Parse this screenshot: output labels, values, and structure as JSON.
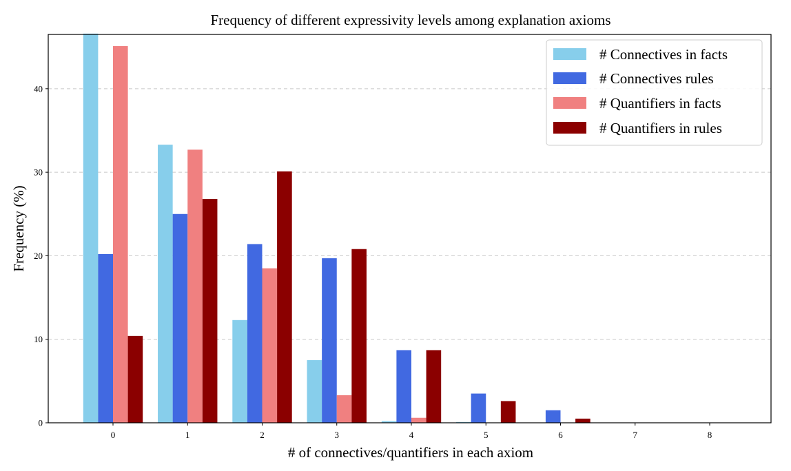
{
  "chart_data": {
    "type": "bar",
    "title": "Frequency of different expressivity levels among explanation axioms",
    "xlabel": "# of connectives/quantifiers in each axiom",
    "ylabel": "Frequency (%)",
    "categories": [
      "0",
      "1",
      "2",
      "3",
      "4",
      "5",
      "6",
      "7",
      "8"
    ],
    "yticks": [
      0,
      10,
      20,
      30,
      40
    ],
    "ylim": [
      0,
      46.5
    ],
    "grid": "horizontal-dashed",
    "legend_position": "top-right",
    "series": [
      {
        "name": "# Connectives in facts",
        "color": "#87CEEB",
        "values": [
          46.6,
          33.3,
          12.3,
          7.5,
          0.2,
          0.1,
          0,
          0,
          0
        ]
      },
      {
        "name": "# Connectives rules",
        "color": "#4169E1",
        "values": [
          20.2,
          25.0,
          21.4,
          19.7,
          8.7,
          3.5,
          1.5,
          0,
          0
        ]
      },
      {
        "name": "# Quantifiers in facts",
        "color": "#F08080",
        "values": [
          45.1,
          32.7,
          18.5,
          3.3,
          0.6,
          0,
          0,
          0,
          0
        ]
      },
      {
        "name": "# Quantifiers in rules",
        "color": "#8B0000",
        "values": [
          10.4,
          26.8,
          30.1,
          20.8,
          8.7,
          2.6,
          0.5,
          0,
          0
        ]
      }
    ]
  }
}
